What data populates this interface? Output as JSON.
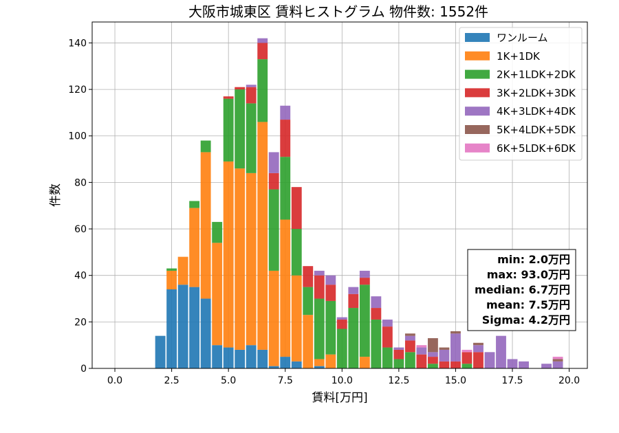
{
  "chart_data": {
    "type": "bar",
    "stacked": true,
    "title": "大阪市城東区 賃料ヒストグラム 物件数: 1552件",
    "xlabel": "賃料[万円]",
    "ylabel": "件数",
    "xlim": [
      -1.0,
      20.8
    ],
    "ylim": [
      0,
      149
    ],
    "xticks": [
      0.0,
      2.5,
      5.0,
      7.5,
      10.0,
      12.5,
      15.0,
      17.5,
      20.0
    ],
    "xtick_labels": [
      "0.0",
      "2.5",
      "5.0",
      "7.5",
      "10.0",
      "12.5",
      "15.0",
      "17.5",
      "20.0"
    ],
    "yticks": [
      0,
      20,
      40,
      60,
      80,
      100,
      120,
      140
    ],
    "ytick_labels": [
      "0",
      "20",
      "40",
      "60",
      "80",
      "100",
      "120",
      "140"
    ],
    "grid": true,
    "legend_position": "top-right",
    "bin_width": 0.5,
    "x": [
      2.0,
      2.5,
      3.0,
      3.5,
      4.0,
      4.5,
      5.0,
      5.5,
      6.0,
      6.5,
      7.0,
      7.5,
      8.0,
      8.5,
      9.0,
      9.5,
      10.0,
      10.5,
      11.0,
      11.5,
      12.0,
      12.5,
      13.0,
      13.5,
      14.0,
      14.5,
      15.0,
      15.5,
      16.0,
      16.5,
      17.0,
      17.5,
      18.0,
      18.5,
      19.0,
      19.5
    ],
    "series": [
      {
        "name": "ワンルーム",
        "color": "#1f77b4",
        "values": [
          14,
          34,
          36,
          35,
          30,
          10,
          9,
          8,
          10,
          8,
          1,
          5,
          3,
          0,
          1,
          0,
          0,
          0,
          0,
          0,
          0,
          0,
          0,
          0,
          0,
          0,
          0,
          0,
          0,
          0,
          0,
          0,
          0,
          0,
          0,
          0
        ]
      },
      {
        "name": "1K+1DK",
        "color": "#ff7f0e",
        "values": [
          0,
          8,
          12,
          34,
          63,
          44,
          80,
          78,
          74,
          98,
          41,
          59,
          37,
          23,
          3,
          6,
          0,
          0,
          5,
          0,
          0,
          0,
          0,
          0,
          0,
          0,
          0,
          0,
          0,
          0,
          0,
          0,
          0,
          0,
          0,
          0
        ]
      },
      {
        "name": "2K+1LDK+2DK",
        "color": "#2ca02c",
        "values": [
          0,
          1,
          0,
          3,
          5,
          9,
          27,
          34,
          30,
          27,
          35,
          27,
          20,
          12,
          26,
          23,
          17,
          26,
          31,
          21,
          9,
          4,
          7,
          0,
          2,
          0,
          0,
          2,
          0,
          0,
          0,
          0,
          0,
          0,
          0,
          0
        ]
      },
      {
        "name": "3K+2LDK+3DK",
        "color": "#d62728",
        "values": [
          0,
          0,
          0,
          0,
          0,
          0,
          1,
          1,
          7,
          7,
          7,
          16,
          18,
          9,
          10,
          7,
          4,
          6,
          3,
          5,
          9,
          4,
          5,
          6,
          3,
          3,
          3,
          5,
          7,
          0,
          0,
          0,
          0,
          0,
          0,
          0
        ]
      },
      {
        "name": "4K+3LDK+4DK",
        "color": "#9467bd",
        "values": [
          0,
          0,
          0,
          0,
          0,
          0,
          0,
          0,
          1,
          2,
          9,
          6,
          0,
          0,
          2,
          4,
          1,
          3,
          3,
          5,
          3,
          1,
          2,
          3,
          2,
          5,
          12,
          0,
          3,
          7,
          14,
          4,
          3,
          0,
          2,
          3
        ]
      },
      {
        "name": "5K+4LDK+5DK",
        "color": "#8c564b",
        "values": [
          0,
          0,
          0,
          0,
          0,
          0,
          0,
          0,
          0,
          0,
          0,
          0,
          0,
          0,
          0,
          0,
          0,
          0,
          0,
          0,
          0,
          0,
          1,
          0,
          6,
          1,
          1,
          0,
          1,
          0,
          0,
          0,
          0,
          0,
          0,
          1
        ]
      },
      {
        "name": "6K+5LDK+6DK",
        "color": "#e377c2",
        "values": [
          0,
          0,
          0,
          0,
          0,
          0,
          0,
          0,
          0,
          0,
          0,
          0,
          0,
          0,
          0,
          0,
          0,
          0,
          0,
          0,
          0,
          0,
          0,
          1,
          0,
          0,
          0,
          1,
          0,
          0,
          0,
          0,
          0,
          0,
          0,
          1
        ]
      }
    ],
    "annotation": [
      "min: 2.0万円",
      "max: 93.0万円",
      "median: 6.7万円",
      "mean: 7.5万円",
      "Sigma: 4.2万円"
    ]
  }
}
